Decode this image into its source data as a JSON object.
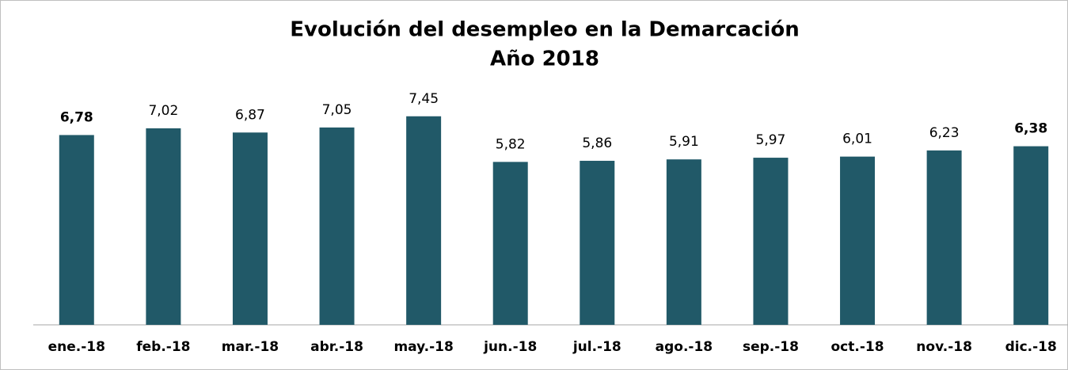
{
  "chart_data": {
    "type": "bar",
    "title": "Evolución del desempleo en la Demarcación",
    "subtitle": "Año 2018",
    "categories": [
      "ene.-18",
      "feb.-18",
      "mar.-18",
      "abr.-18",
      "may.-18",
      "jun.-18",
      "jul.-18",
      "ago.-18",
      "sep.-18",
      "oct.-18",
      "nov.-18",
      "dic.-18"
    ],
    "values": [
      6.78,
      7.02,
      6.87,
      7.05,
      7.45,
      5.82,
      5.86,
      5.91,
      5.97,
      6.01,
      6.23,
      6.38
    ],
    "value_labels": [
      "6,78",
      "7,02",
      "6,87",
      "7,05",
      "7,45",
      "5,82",
      "5,86",
      "5,91",
      "5,97",
      "6,01",
      "6,23",
      "6,38"
    ],
    "color": "#215968",
    "ylim": [
      0,
      9
    ]
  }
}
